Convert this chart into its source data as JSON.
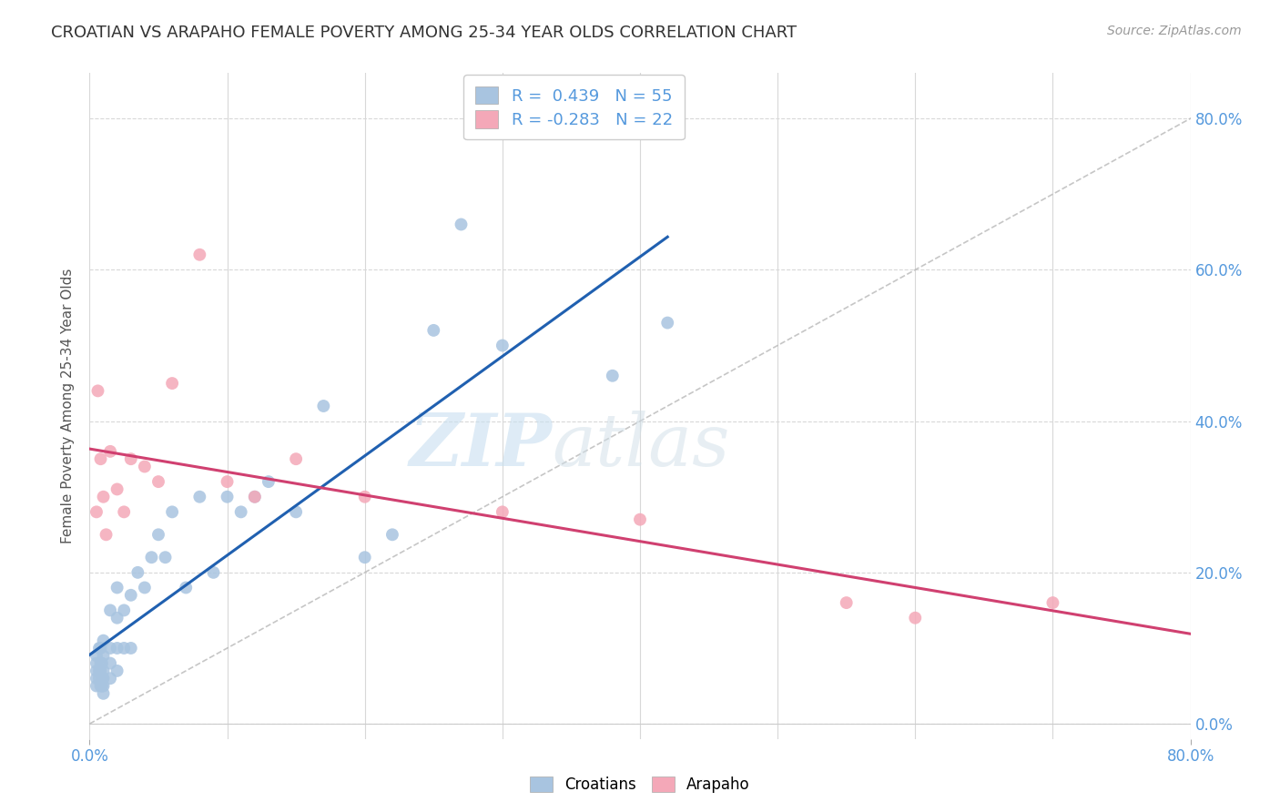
{
  "title": "CROATIAN VS ARAPAHO FEMALE POVERTY AMONG 25-34 YEAR OLDS CORRELATION CHART",
  "source": "Source: ZipAtlas.com",
  "ylabel": "Female Poverty Among 25-34 Year Olds",
  "ytick_labels": [
    "0.0%",
    "20.0%",
    "40.0%",
    "60.0%",
    "80.0%"
  ],
  "ytick_values": [
    0.0,
    0.2,
    0.4,
    0.6,
    0.8
  ],
  "xlim": [
    0.0,
    0.8
  ],
  "ylim": [
    -0.02,
    0.86
  ],
  "croatian_R": 0.439,
  "croatian_N": 55,
  "arapaho_R": -0.283,
  "arapaho_N": 22,
  "croatian_color": "#a8c4e0",
  "arapaho_color": "#f4a8b8",
  "trendline_croatian_color": "#2060b0",
  "trendline_arapaho_color": "#d04070",
  "diagonal_color": "#b8b8b8",
  "background_color": "#ffffff",
  "watermark_zip": "ZIP",
  "watermark_atlas": "atlas",
  "grid_color": "#d8d8d8",
  "croatian_x": [
    0.005,
    0.005,
    0.005,
    0.005,
    0.005,
    0.007,
    0.007,
    0.007,
    0.008,
    0.008,
    0.008,
    0.008,
    0.009,
    0.009,
    0.009,
    0.01,
    0.01,
    0.01,
    0.01,
    0.01,
    0.01,
    0.015,
    0.015,
    0.015,
    0.015,
    0.02,
    0.02,
    0.02,
    0.02,
    0.025,
    0.025,
    0.03,
    0.03,
    0.035,
    0.04,
    0.045,
    0.05,
    0.055,
    0.06,
    0.07,
    0.08,
    0.09,
    0.1,
    0.11,
    0.12,
    0.13,
    0.15,
    0.17,
    0.2,
    0.22,
    0.25,
    0.27,
    0.3,
    0.38,
    0.42
  ],
  "croatian_y": [
    0.05,
    0.06,
    0.07,
    0.08,
    0.09,
    0.06,
    0.07,
    0.1,
    0.05,
    0.07,
    0.08,
    0.1,
    0.05,
    0.06,
    0.08,
    0.04,
    0.05,
    0.06,
    0.07,
    0.09,
    0.11,
    0.06,
    0.08,
    0.1,
    0.15,
    0.07,
    0.1,
    0.14,
    0.18,
    0.1,
    0.15,
    0.1,
    0.17,
    0.2,
    0.18,
    0.22,
    0.25,
    0.22,
    0.28,
    0.18,
    0.3,
    0.2,
    0.3,
    0.28,
    0.3,
    0.32,
    0.28,
    0.42,
    0.22,
    0.25,
    0.52,
    0.66,
    0.5,
    0.46,
    0.53
  ],
  "arapaho_x": [
    0.005,
    0.006,
    0.008,
    0.01,
    0.012,
    0.015,
    0.02,
    0.025,
    0.03,
    0.04,
    0.05,
    0.06,
    0.08,
    0.1,
    0.12,
    0.15,
    0.2,
    0.3,
    0.4,
    0.55,
    0.6,
    0.7
  ],
  "arapaho_y": [
    0.28,
    0.44,
    0.35,
    0.3,
    0.25,
    0.36,
    0.31,
    0.28,
    0.35,
    0.34,
    0.32,
    0.45,
    0.62,
    0.32,
    0.3,
    0.35,
    0.3,
    0.28,
    0.27,
    0.16,
    0.14,
    0.16
  ]
}
